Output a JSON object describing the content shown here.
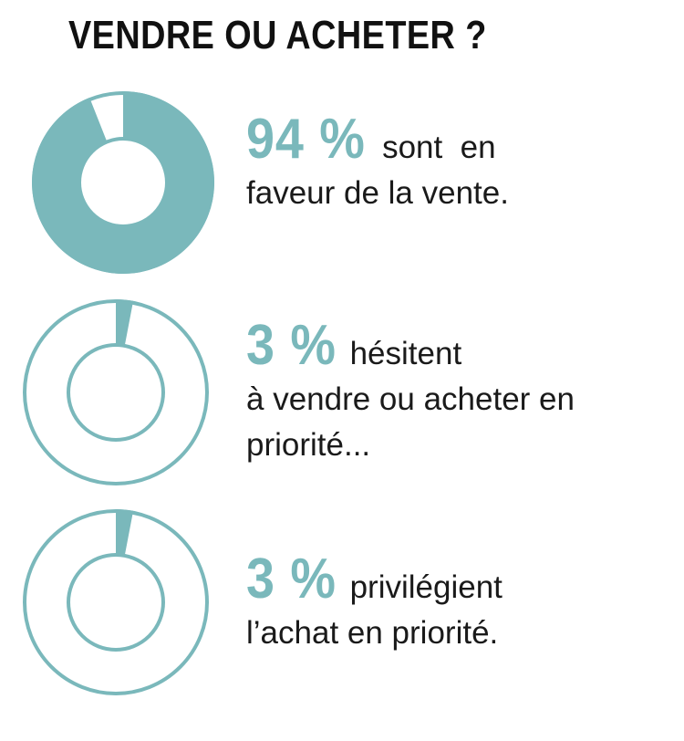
{
  "title": "VENDRE OU ACHETER ?",
  "colors": {
    "accent": "#7ab8bb",
    "text": "#1a1a1a"
  },
  "chart_data": {
    "type": "pie",
    "style": "donut",
    "title": "VENDRE OU ACHETER ?",
    "unit": "%",
    "items": [
      {
        "value": 94,
        "label": "94 %",
        "text_lines": [
          "sont  en",
          "faveur de la vente."
        ]
      },
      {
        "value": 3,
        "label": "3 %",
        "text_lines": [
          "hésitent",
          "à vendre ou acheter en",
          "priorité..."
        ]
      },
      {
        "value": 3,
        "label": "3 %",
        "text_lines": [
          "privilégient",
          "l’achat en priorité."
        ]
      }
    ]
  }
}
